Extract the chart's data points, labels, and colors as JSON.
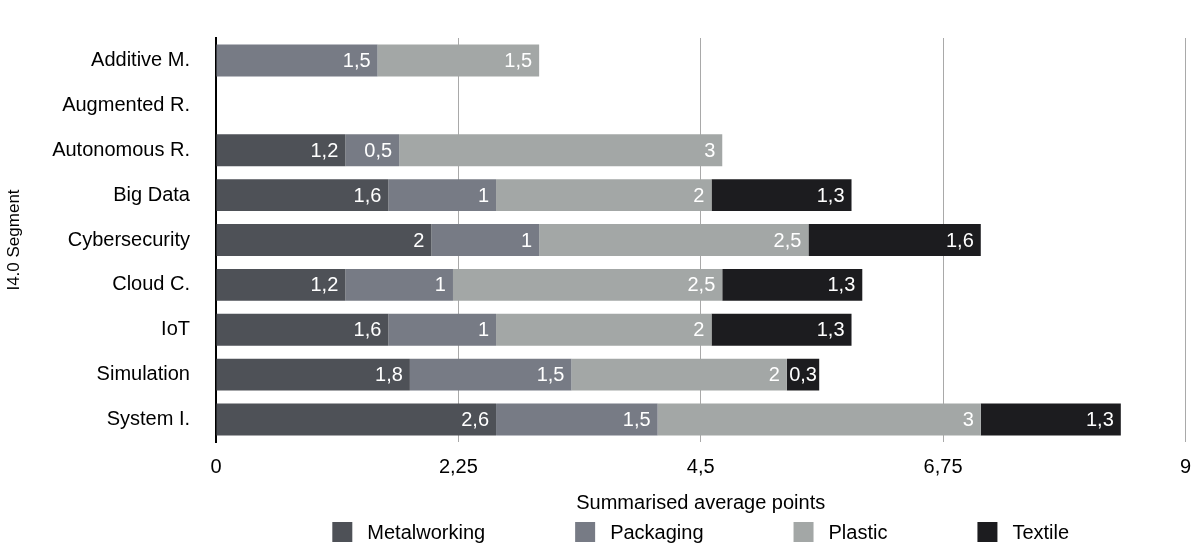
{
  "chart_data": {
    "type": "bar",
    "orientation": "horizontal",
    "stacked": true,
    "xlabel": "Summarised average points",
    "ylabel": "I4.0 Segment",
    "categories": [
      "Additive M.",
      "Augmented R.",
      "Autonomous R.",
      "Big Data",
      "Cybersecurity",
      "Cloud C.",
      "IoT",
      "Simulation",
      "System I."
    ],
    "series": [
      {
        "name": "Metalworking",
        "color": "#4e5157",
        "values": [
          0,
          0,
          1.2,
          1.6,
          2,
          1.2,
          1.6,
          1.8,
          2.6
        ],
        "value_labels": [
          null,
          null,
          "1,2",
          "1,6",
          "2",
          "1,2",
          "1,6",
          "1,8",
          "2,6"
        ]
      },
      {
        "name": "Packaging",
        "color": "#777b85",
        "values": [
          1.5,
          0,
          0.5,
          1,
          1,
          1,
          1,
          1.5,
          1.5
        ],
        "value_labels": [
          "1,5",
          null,
          "0,5",
          "1",
          "1",
          "1",
          "1",
          "1,5",
          "1,5"
        ]
      },
      {
        "name": "Plastic",
        "color": "#a3a7a6",
        "values": [
          1.5,
          0,
          3,
          2,
          2.5,
          2.5,
          2,
          2,
          3
        ],
        "value_labels": [
          "1,5",
          null,
          "3",
          "2",
          "2,5",
          "2,5",
          "2",
          "2",
          "3"
        ]
      },
      {
        "name": "Textile",
        "color": "#1c1c1f",
        "values": [
          0,
          0,
          0,
          1.3,
          1.6,
          1.3,
          1.3,
          0.3,
          1.3
        ],
        "value_labels": [
          null,
          null,
          null,
          "1,3",
          "1,6",
          "1,3",
          "1,3",
          "0,3",
          "1,3"
        ]
      }
    ],
    "xlim": [
      0,
      9
    ],
    "xticks": [
      0,
      {
        "value": 2.25,
        "label": "2,25"
      },
      {
        "value": 4.5,
        "label": "4,5"
      },
      {
        "value": 6.75,
        "label": "6,75"
      },
      9
    ],
    "grid": "x",
    "legend": "bottom"
  }
}
